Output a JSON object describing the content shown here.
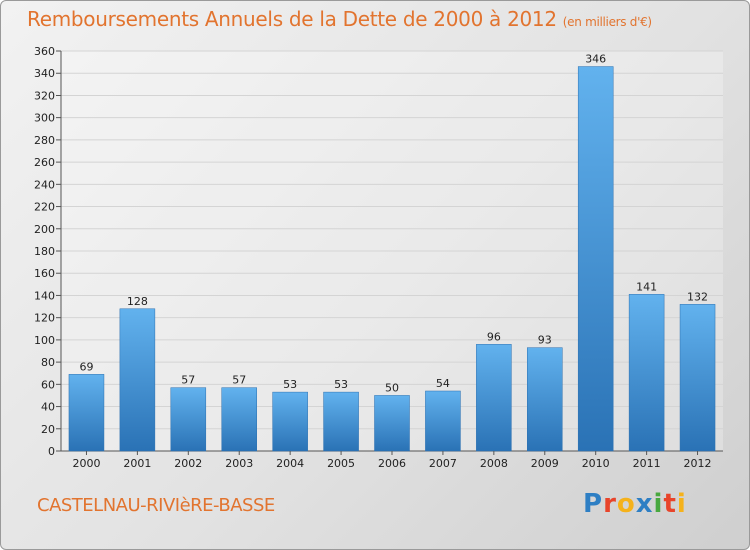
{
  "header": {
    "title": "Remboursements Annuels de la Dette de 2000 à 2012",
    "unit": "(en milliers d'€)"
  },
  "footer": {
    "place": "CASTELNAU-RIVIèRE-BASSE",
    "logo_letters": [
      "P",
      "r",
      "o",
      "x",
      "i",
      "t",
      "i"
    ],
    "logo_colors": [
      "#2e7fc4",
      "#e8442a",
      "#f5b21b",
      "#2e7fc4",
      "#49a83f",
      "#e8442a",
      "#f5b21b"
    ]
  },
  "chart_data": {
    "type": "bar",
    "title": "Remboursements Annuels de la Dette de 2000 à 2012",
    "subtitle": "(en milliers d'€)",
    "categories": [
      "2000",
      "2001",
      "2002",
      "2003",
      "2004",
      "2005",
      "2006",
      "2007",
      "2008",
      "2009",
      "2010",
      "2011",
      "2012"
    ],
    "values": [
      69,
      128,
      57,
      57,
      53,
      53,
      50,
      54,
      96,
      93,
      346,
      141,
      132
    ],
    "ylim": [
      0,
      360
    ],
    "yticks": [
      0,
      20,
      40,
      60,
      80,
      100,
      120,
      140,
      160,
      180,
      200,
      220,
      240,
      260,
      280,
      300,
      320,
      340,
      360
    ],
    "grid": true,
    "bar_color": "#3a8fd6",
    "bar_highlight": "#62b2ee",
    "bar_shadow": "#2a72b5",
    "grid_color": "#d4d4d4"
  }
}
